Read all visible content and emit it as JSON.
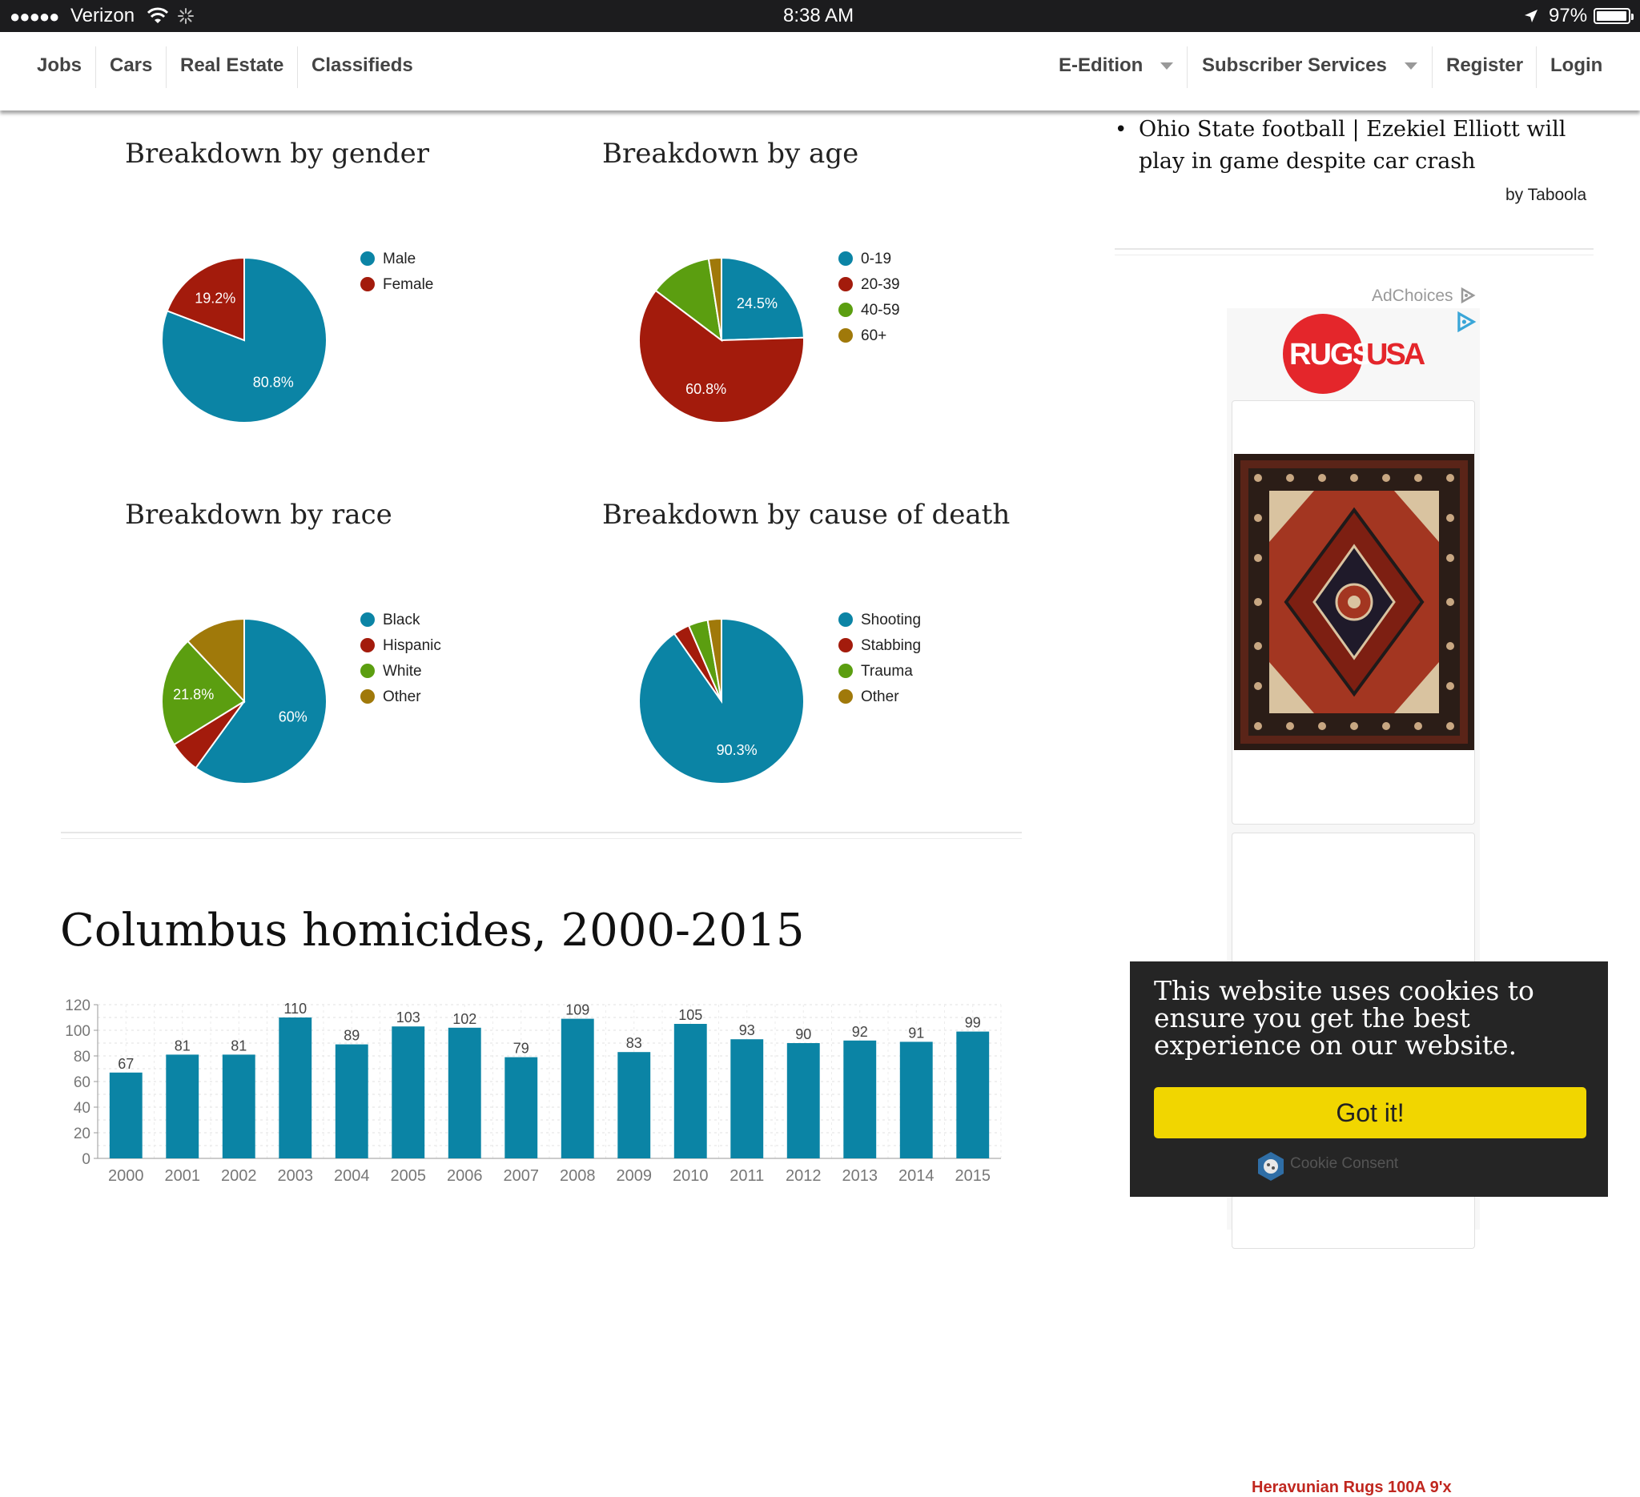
{
  "status_bar": {
    "signal": "●●●●●",
    "carrier": "Verizon",
    "time": "8:38 AM",
    "battery": "97%",
    "battery_level": 0.97
  },
  "nav": {
    "left": [
      "Jobs",
      "Cars",
      "Real Estate",
      "Classifieds"
    ],
    "right": [
      {
        "label": "E-Edition",
        "dropdown": true
      },
      {
        "label": "Subscriber Services",
        "dropdown": true
      },
      {
        "label": "Register",
        "dropdown": false
      },
      {
        "label": "Login",
        "dropdown": false
      }
    ]
  },
  "colors": {
    "blue": "#0b84a5",
    "red": "#a31b0c",
    "green": "#5b9e10",
    "gold": "#a0790a",
    "cookie_button": "#f1d600"
  },
  "pies": {
    "gender": {
      "title": "Breakdown by gender"
    },
    "age": {
      "title": "Breakdown by age"
    },
    "race": {
      "title": "Breakdown by race"
    },
    "cause": {
      "title": "Breakdown by cause of death"
    }
  },
  "chart_data": [
    {
      "type": "pie",
      "title": "Breakdown by gender",
      "labels": [
        "Male",
        "Female"
      ],
      "values": [
        80.8,
        19.2
      ],
      "slice_labels": [
        "80.8%",
        "19.2%"
      ],
      "colors": [
        "#0b84a5",
        "#a31b0c"
      ],
      "legend": "right"
    },
    {
      "type": "pie",
      "title": "Breakdown by age",
      "labels": [
        "0-19",
        "20-39",
        "40-59",
        "60+"
      ],
      "values": [
        24.5,
        60.8,
        12.2,
        2.5
      ],
      "slice_labels": [
        "24.5%",
        "60.8%",
        "",
        ""
      ],
      "colors": [
        "#0b84a5",
        "#a31b0c",
        "#5b9e10",
        "#a0790a"
      ],
      "legend": "right"
    },
    {
      "type": "pie",
      "title": "Breakdown by race",
      "labels": [
        "Black",
        "Hispanic",
        "White",
        "Other"
      ],
      "values": [
        60,
        6.2,
        21.8,
        12
      ],
      "slice_labels": [
        "60%",
        "",
        "21.8%",
        ""
      ],
      "colors": [
        "#0b84a5",
        "#a31b0c",
        "#5b9e10",
        "#a0790a"
      ],
      "legend": "right"
    },
    {
      "type": "pie",
      "title": "Breakdown by cause of death",
      "labels": [
        "Shooting",
        "Stabbing",
        "Trauma",
        "Other"
      ],
      "values": [
        90.3,
        3.2,
        3.8,
        2.7
      ],
      "slice_labels": [
        "90.3%",
        "",
        "",
        ""
      ],
      "colors": [
        "#0b84a5",
        "#a31b0c",
        "#5b9e10",
        "#a0790a"
      ],
      "legend": "right"
    },
    {
      "type": "bar",
      "title": "Columbus homicides, 2000-2015",
      "categories": [
        "2000",
        "2001",
        "2002",
        "2003",
        "2004",
        "2005",
        "2006",
        "2007",
        "2008",
        "2009",
        "2010",
        "2011",
        "2012",
        "2013",
        "2014",
        "2015"
      ],
      "values": [
        67,
        81,
        81,
        110,
        89,
        103,
        102,
        79,
        109,
        83,
        105,
        93,
        90,
        92,
        91,
        99
      ],
      "yticks": [
        0,
        20,
        40,
        60,
        80,
        100,
        120
      ],
      "ylim": [
        0,
        120
      ],
      "color": "#0b84a5",
      "grid": true
    }
  ],
  "sidebar": {
    "story": "Ohio State football | Ezekiel Elliott will play in game despite car crash",
    "taboola": "by Taboola",
    "adchoices": "AdChoices",
    "ad_logo_left": "RUGS",
    "ad_logo_right": "USA",
    "ad_title": "Heravunian Rugs 100A 9'x"
  },
  "cookie": {
    "message": "This website uses cookies to ensure you get the best experience on our website.",
    "button": "Got it!",
    "brand": "Cookie Consent"
  }
}
